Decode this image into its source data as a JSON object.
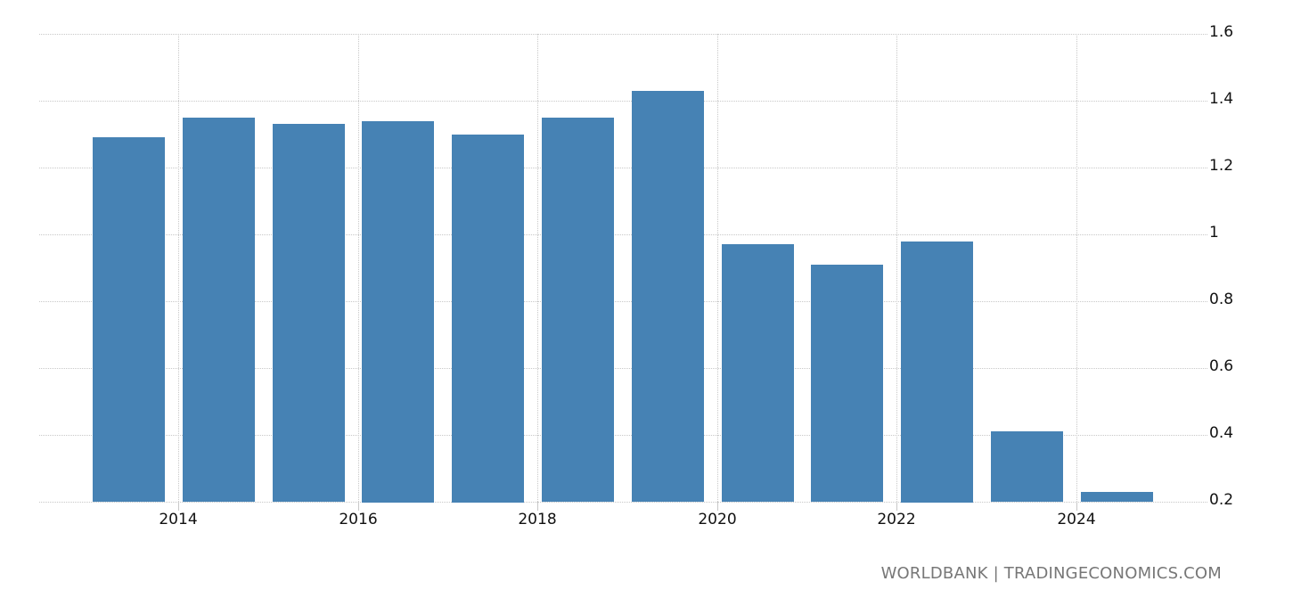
{
  "chart_data": {
    "type": "bar",
    "title": "",
    "xlabel": "",
    "ylabel": "",
    "categories": [
      "2013",
      "2014",
      "2015",
      "2016",
      "2017",
      "2018",
      "2019",
      "2020",
      "2021",
      "2022",
      "2023",
      "2024"
    ],
    "values": [
      1.29,
      1.35,
      1.33,
      1.34,
      1.3,
      1.35,
      1.43,
      0.97,
      0.91,
      0.98,
      0.41,
      0.23
    ],
    "ylim": [
      0.2,
      1.6
    ],
    "yticks": [
      "0.2",
      "0.4",
      "0.6",
      "0.8",
      "1",
      "1.2",
      "1.4",
      "1.6"
    ],
    "xticks": [
      "2014",
      "2016",
      "2018",
      "2020",
      "2022",
      "2024"
    ],
    "grid": true,
    "y_axis_position": "right",
    "bar_color": "#4682b4"
  },
  "footer": {
    "source": "WORLDBANK | TRADINGECONOMICS.COM"
  }
}
